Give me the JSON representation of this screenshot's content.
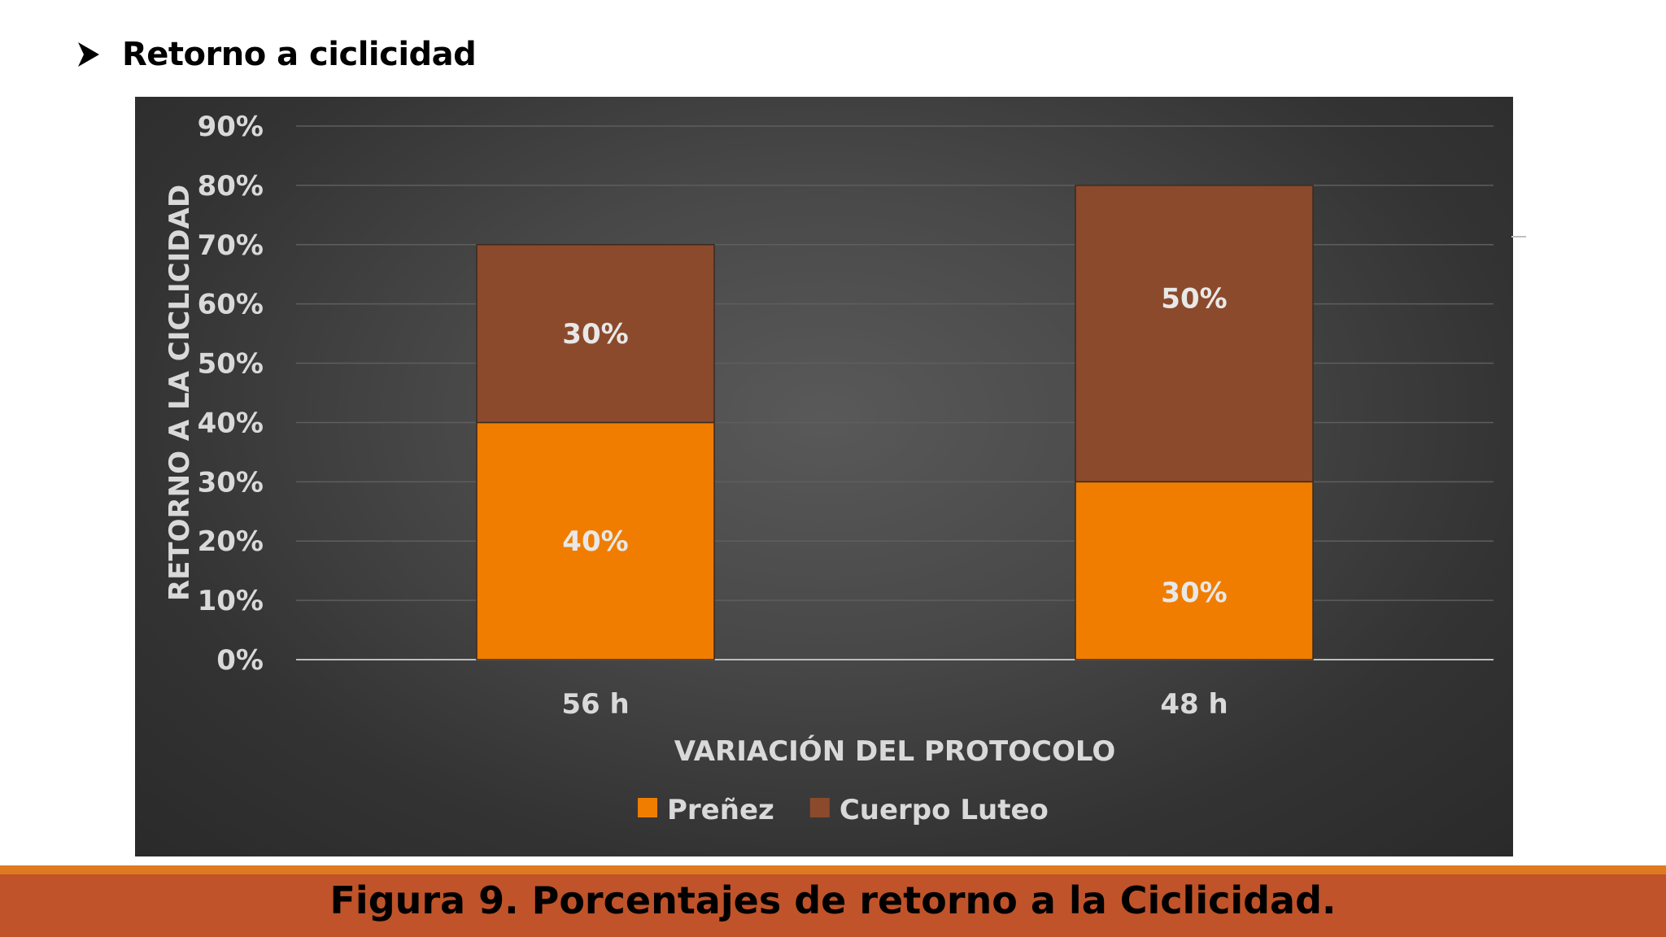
{
  "slide": {
    "heading": "Retorno a ciclicidad",
    "caption": "Figura 9. Porcentajes de retorno a la Ciclicidad."
  },
  "colors": {
    "prenez": "#f07d00",
    "cuerpo_luteo": "#8b4a2c",
    "caption_bar": "#c0532a",
    "caption_border": "#e07a22"
  },
  "chart_data": {
    "type": "bar",
    "stacked": true,
    "categories": [
      "56 h",
      "48 h"
    ],
    "series": [
      {
        "name": "Preñez",
        "values": [
          40,
          30
        ],
        "labels": [
          "40%",
          "30%"
        ],
        "color": "#f07d00"
      },
      {
        "name": "Cuerpo Luteo",
        "values": [
          30,
          50
        ],
        "labels": [
          "30%",
          "50%"
        ],
        "color": "#8b4a2c"
      }
    ],
    "xlabel": "VARIACIÓN DEL PROTOCOLO",
    "ylabel": "RETORNO A LA CICLICIDAD",
    "ylim": [
      0,
      90
    ],
    "yticks": [
      "0%",
      "10%",
      "20%",
      "30%",
      "40%",
      "50%",
      "60%",
      "70%",
      "80%",
      "90%"
    ],
    "grid": true,
    "legend": "bottom"
  }
}
